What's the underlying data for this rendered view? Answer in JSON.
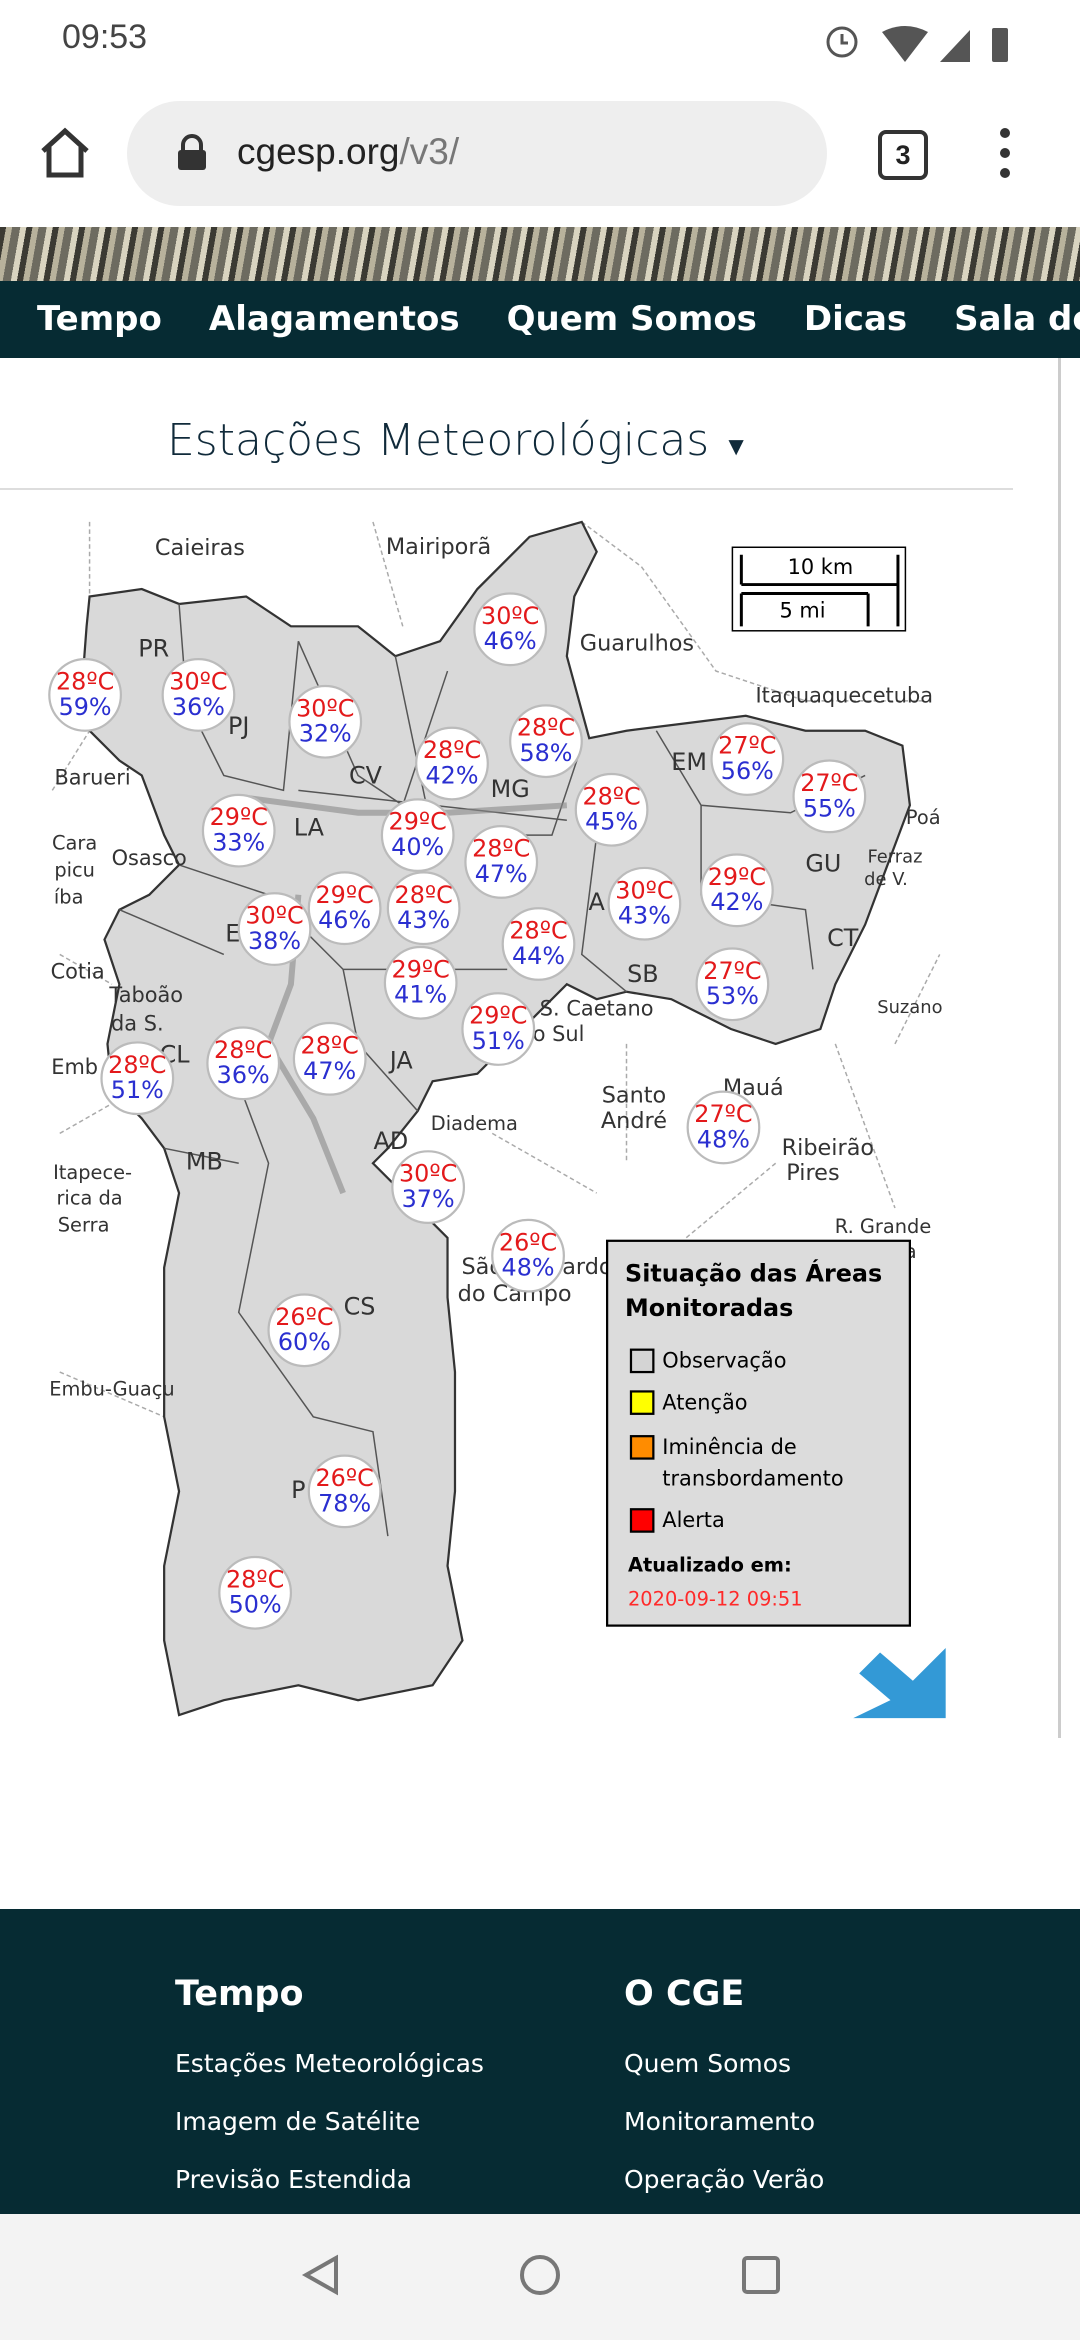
{
  "status_bar": {
    "time": "09:53"
  },
  "browser": {
    "url_host": "cgesp.org",
    "url_path": "/v3/",
    "tab_count": "3"
  },
  "nav": [
    "Tempo",
    "Alagamentos",
    "Quem Somos",
    "Dicas",
    "Sala de Imprensa"
  ],
  "section_title": "Estações Meteorológicas",
  "map": {
    "scale": [
      "10 km",
      "5 mi"
    ],
    "labels": [
      "Caieiras",
      "Mairiporã",
      "Guarulhos",
      "Itaquaquecetuba",
      "Barueri",
      "Cara",
      "picu",
      "íba",
      "Osasco",
      "Cotia",
      "Taboão",
      "da S.",
      "Emb",
      "Itapece-",
      "rica da",
      "Serra",
      "Embu-Guaçu",
      "Diadema",
      "Santo",
      "André",
      "Mauá",
      "Ribeirão",
      "Pires",
      "R. Grande",
      "da Serra",
      "S. Caetano",
      "do Sul",
      "São Bernardo",
      "do Campo",
      "Poá",
      "Ferraz",
      "de V.",
      "Suzano",
      "PR",
      "PJ",
      "CV",
      "MG",
      "EM",
      "LA",
      "GU",
      "CT",
      "A",
      "SB",
      "JA",
      "AD",
      "MB",
      "CS",
      "P",
      "CL",
      "E"
    ],
    "stations": [
      {
        "temp": "30ºC",
        "humidity": "46%"
      },
      {
        "temp": "28ºC",
        "humidity": "59%"
      },
      {
        "temp": "30ºC",
        "humidity": "36%"
      },
      {
        "temp": "30ºC",
        "humidity": "32%"
      },
      {
        "temp": "28ºC",
        "humidity": "42%"
      },
      {
        "temp": "28ºC",
        "humidity": "58%"
      },
      {
        "temp": "27ºC",
        "humidity": "56%"
      },
      {
        "temp": "27ºC",
        "humidity": "55%"
      },
      {
        "temp": "28ºC",
        "humidity": "45%"
      },
      {
        "temp": "29ºC",
        "humidity": "33%"
      },
      {
        "temp": "29ºC",
        "humidity": "40%"
      },
      {
        "temp": "28ºC",
        "humidity": "47%"
      },
      {
        "temp": "29ºC",
        "humidity": "42%"
      },
      {
        "temp": "30ºC",
        "humidity": "43%"
      },
      {
        "temp": "30ºC",
        "humidity": "38%"
      },
      {
        "temp": "29ºC",
        "humidity": "46%"
      },
      {
        "temp": "28ºC",
        "humidity": "43%"
      },
      {
        "temp": "28ºC",
        "humidity": "44%"
      },
      {
        "temp": "29ºC",
        "humidity": "41%"
      },
      {
        "temp": "27ºC",
        "humidity": "53%"
      },
      {
        "temp": "29ºC",
        "humidity": "51%"
      },
      {
        "temp": "28ºC",
        "humidity": "36%"
      },
      {
        "temp": "28ºC",
        "humidity": "47%"
      },
      {
        "temp": "28ºC",
        "humidity": "51%"
      },
      {
        "temp": "27ºC",
        "humidity": "48%"
      },
      {
        "temp": "30ºC",
        "humidity": "37%"
      },
      {
        "temp": "26ºC",
        "humidity": "48%"
      },
      {
        "temp": "26ºC",
        "humidity": "60%"
      },
      {
        "temp": "26ºC",
        "humidity": "78%"
      },
      {
        "temp": "28ºC",
        "humidity": "50%"
      }
    ],
    "legend": {
      "title": [
        "Situação das Áreas",
        "Monitoradas"
      ],
      "items": [
        [
          "Observação"
        ],
        [
          "Atenção"
        ],
        [
          "Iminência de",
          "transbordamento"
        ],
        [
          "Alerta"
        ]
      ],
      "updated_label": "Atualizado em:",
      "updated_at": "2020-09-12 09:51"
    }
  },
  "footer": {
    "columns": [
      {
        "title": "Tempo",
        "links": [
          "Estações Meteorológicas",
          "Imagem de Satélite",
          "Previsão Estendida"
        ]
      },
      {
        "title": "O CGE",
        "links": [
          "Quem Somos",
          "Monitoramento",
          "Operação Verão"
        ]
      }
    ]
  }
}
